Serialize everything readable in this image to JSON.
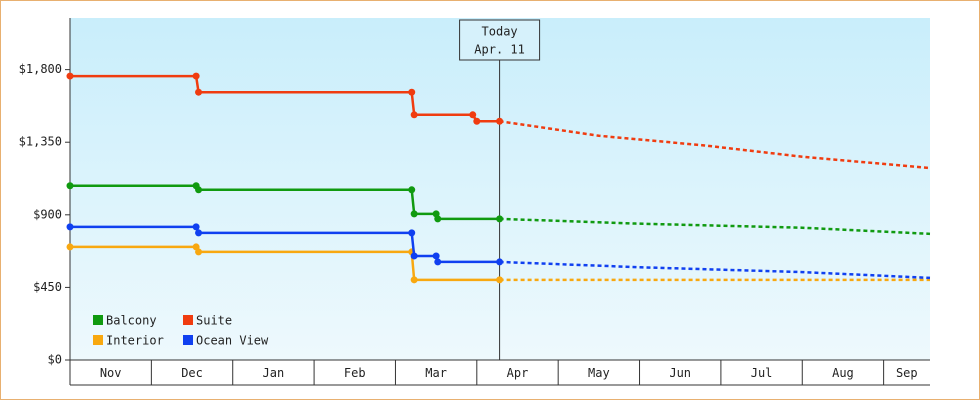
{
  "chart_data": {
    "type": "step-line",
    "ylim": [
      0,
      2120
    ],
    "yticks": [
      {
        "value": 0,
        "label": "$0"
      },
      {
        "value": 450,
        "label": "$450"
      },
      {
        "value": 900,
        "label": "$900"
      },
      {
        "value": 1350,
        "label": "$1,350"
      },
      {
        "value": 1800,
        "label": "$1,800"
      }
    ],
    "xlim": [
      0,
      10.57
    ],
    "xticks": [
      0,
      1,
      2,
      3,
      4,
      5,
      6,
      7,
      8,
      9,
      10
    ],
    "categories": [
      "Nov",
      "Dec",
      "Jan",
      "Feb",
      "Mar",
      "Apr",
      "May",
      "Jun",
      "Jul",
      "Aug",
      "Sep"
    ],
    "today": {
      "label": "Today",
      "date": "Apr. 11",
      "x": 5.28
    },
    "legend": "bottom-left",
    "series": [
      {
        "name": "Balcony",
        "color": "#109a10",
        "x": [
          0,
          1.55,
          1.58,
          4.2,
          4.23,
          4.5,
          4.52,
          5.28
        ],
        "values": [
          1080,
          1080,
          1055,
          1055,
          906,
          906,
          875,
          875
        ],
        "forecast": {
          "x": [
            5.28,
            7,
            9,
            10.57
          ],
          "values": [
            875,
            845,
            820,
            782
          ]
        }
      },
      {
        "name": "Suite",
        "color": "#f03c10",
        "x": [
          0,
          1.55,
          1.58,
          4.2,
          4.23,
          4.95,
          5.0,
          5.28
        ],
        "values": [
          1760,
          1760,
          1660,
          1660,
          1520,
          1520,
          1480,
          1480
        ],
        "forecast": {
          "x": [
            5.28,
            6.5,
            7.8,
            9,
            10.57
          ],
          "values": [
            1480,
            1390,
            1330,
            1260,
            1190
          ]
        }
      },
      {
        "name": "Interior",
        "color": "#f8a810",
        "x": [
          0,
          1.55,
          1.58,
          4.2,
          4.23,
          5.28
        ],
        "values": [
          701,
          701,
          670,
          670,
          497,
          497
        ],
        "forecast": {
          "x": [
            5.28,
            10.57
          ],
          "values": [
            497,
            497
          ]
        }
      },
      {
        "name": "Ocean View",
        "color": "#1040f0",
        "x": [
          0,
          1.55,
          1.58,
          4.2,
          4.23,
          4.5,
          4.52,
          5.28
        ],
        "values": [
          825,
          825,
          788,
          788,
          645,
          645,
          608,
          608
        ],
        "forecast": {
          "x": [
            5.28,
            7,
            9,
            10.57
          ],
          "values": [
            608,
            575,
            545,
            509
          ]
        }
      }
    ]
  }
}
